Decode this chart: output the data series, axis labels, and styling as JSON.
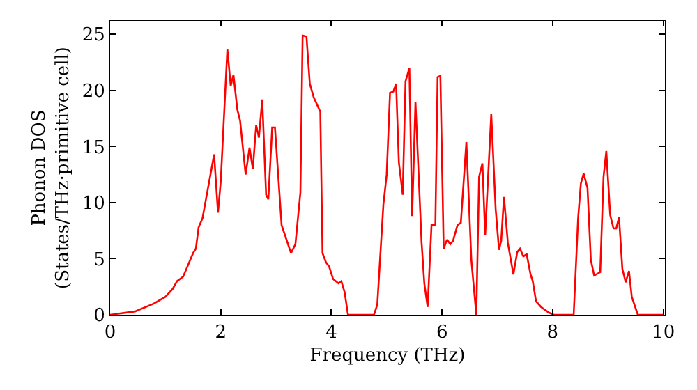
{
  "chart_data": {
    "type": "line",
    "xlabel": "Frequency (THz)",
    "ylabel": "Phonon DOS\n(States/THz·primitive cell)",
    "xlim": [
      0,
      10.03
    ],
    "ylim": [
      0,
      26.2
    ],
    "xticks": [
      0,
      2,
      4,
      6,
      8,
      10
    ],
    "yticks": [
      0,
      5,
      10,
      15,
      20,
      25
    ],
    "marker": "none",
    "line_style": "solid",
    "x": [
      0,
      0.45,
      0.79,
      1.0,
      1.13,
      1.21,
      1.32,
      1.5,
      1.55,
      1.6,
      1.67,
      1.88,
      1.95,
      2.0,
      2.12,
      2.18,
      2.23,
      2.3,
      2.35,
      2.45,
      2.52,
      2.58,
      2.64,
      2.69,
      2.75,
      2.82,
      2.86,
      2.93,
      2.98,
      3.1,
      3.27,
      3.35,
      3.44,
      3.48,
      3.55,
      3.61,
      3.68,
      3.8,
      3.84,
      3.9,
      3.96,
      4.03,
      4.13,
      4.18,
      4.24,
      4.3,
      4.77,
      4.83,
      4.94,
      5.0,
      5.06,
      5.12,
      5.17,
      5.22,
      5.29,
      5.34,
      5.41,
      5.46,
      5.52,
      5.63,
      5.68,
      5.74,
      5.81,
      5.88,
      5.92,
      5.97,
      6.03,
      6.09,
      6.15,
      6.2,
      6.28,
      6.34,
      6.44,
      6.53,
      6.62,
      6.67,
      6.73,
      6.78,
      6.89,
      6.97,
      7.03,
      7.07,
      7.12,
      7.19,
      7.29,
      7.36,
      7.41,
      7.47,
      7.53,
      7.6,
      7.64,
      7.7,
      7.79,
      7.93,
      8.02,
      8.38,
      8.46,
      8.51,
      8.56,
      8.63,
      8.69,
      8.75,
      8.86,
      8.92,
      8.97,
      9.04,
      9.1,
      9.15,
      9.2,
      9.26,
      9.32,
      9.38,
      9.43,
      9.54,
      10.0
    ],
    "series": [
      {
        "color": "#ff0000",
        "values": [
          0,
          0.3,
          1.0,
          1.6,
          2.3,
          3.0,
          3.4,
          5.5,
          5.9,
          7.8,
          8.6,
          14.3,
          9.1,
          11.9,
          23.7,
          20.4,
          21.4,
          18.3,
          17.3,
          12.5,
          14.9,
          13.0,
          16.9,
          15.8,
          19.2,
          10.7,
          10.3,
          16.7,
          16.7,
          8.0,
          5.5,
          6.3,
          10.9,
          24.9,
          24.8,
          20.6,
          19.4,
          18.1,
          5.5,
          4.7,
          4.3,
          3.2,
          2.8,
          3.0,
          2.0,
          0,
          0,
          0.9,
          9.8,
          12.5,
          19.8,
          19.9,
          20.6,
          13.6,
          10.7,
          20.8,
          22.0,
          8.8,
          19.0,
          6.5,
          2.8,
          0.7,
          8.0,
          8.0,
          21.2,
          21.3,
          5.9,
          6.7,
          6.3,
          6.6,
          8.0,
          8.2,
          15.4,
          4.9,
          0,
          12.3,
          13.5,
          7.1,
          17.9,
          9.4,
          5.8,
          6.6,
          10.5,
          6.4,
          3.6,
          5.6,
          5.9,
          5.2,
          5.4,
          3.6,
          3.0,
          1.2,
          0.7,
          0.2,
          0,
          0,
          8.6,
          11.7,
          12.6,
          11.3,
          4.9,
          3.5,
          3.8,
          12.3,
          14.6,
          8.9,
          7.7,
          7.7,
          8.7,
          4.1,
          2.9,
          3.9,
          1.6,
          0,
          0
        ]
      }
    ]
  }
}
